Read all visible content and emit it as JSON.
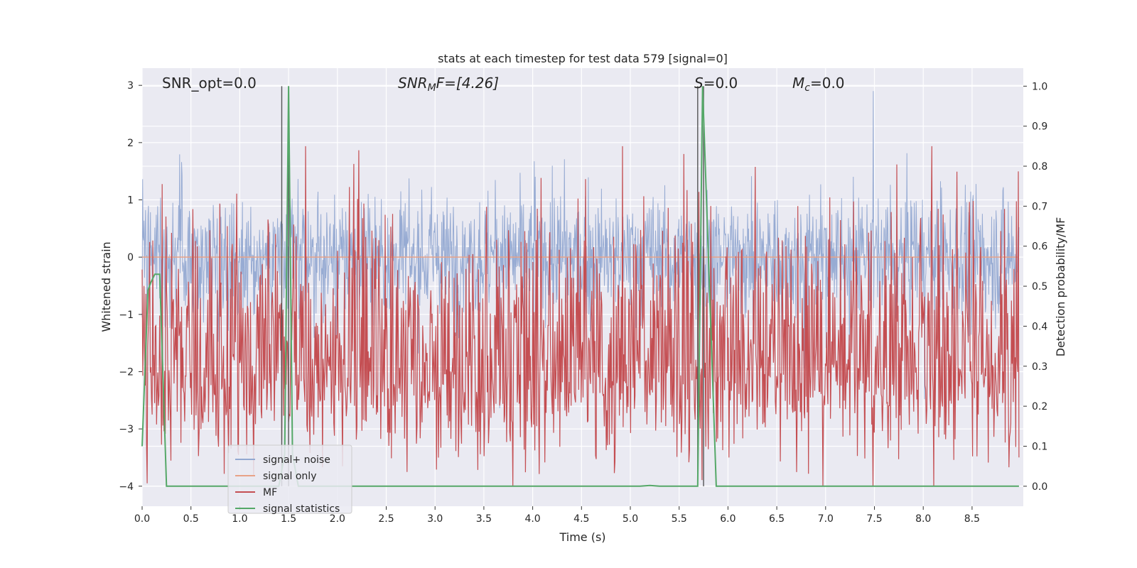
{
  "chart_data": {
    "type": "line",
    "title": "stats at each timestep for test data 579 [signal=0]",
    "xlabel": "Time (s)",
    "ylabel_left": "Whitened strain",
    "ylabel_right": "Detection probability/MF",
    "xlim": [
      0,
      9.0
    ],
    "ylim_left": [
      -4.35,
      3.3
    ],
    "ylim_right": [
      -0.05,
      1.045
    ],
    "x_ticks": [
      "0.0",
      "0.5",
      "1.0",
      "1.5",
      "2.0",
      "2.5",
      "3.0",
      "3.5",
      "4.0",
      "4.5",
      "5.0",
      "5.5",
      "6.0",
      "6.5",
      "7.0",
      "7.5",
      "8.0",
      "8.5"
    ],
    "y_ticks_left": [
      "3",
      "2",
      "1",
      "0",
      "−1",
      "−2",
      "−3",
      "−4"
    ],
    "y_ticks_right": [
      "1.0",
      "0.9",
      "0.8",
      "0.7",
      "0.6",
      "0.5",
      "0.4",
      "0.3",
      "0.2",
      "0.1",
      "0.0"
    ],
    "grid": true,
    "legend_position": "lower-left",
    "annotations": {
      "snr_opt": "SNR_opt=0.0",
      "snr_mf_base": "SNR",
      "snr_mf_sub": "M",
      "snr_mf_rest": "F=[4.26]",
      "s_label": "S",
      "s_value": "=0.0",
      "mc_base": "M",
      "mc_sub": "c",
      "mc_value": "=0.0"
    },
    "series": [
      {
        "name": "signal+ noise",
        "color": "#92a8d1",
        "kind": "noise",
        "min": -3.2,
        "max": 2.9,
        "typical_range": [
          -1.5,
          1.5
        ]
      },
      {
        "name": "signal only",
        "color": "#e8a287",
        "constant": 0.0
      },
      {
        "name": "MF",
        "color": "#c44e52",
        "kind": "noise",
        "typical_range": [
          0.0,
          0.85
        ]
      },
      {
        "name": "signal statistics",
        "color": "#55a868",
        "x": [
          0.0,
          0.06,
          0.09,
          0.13,
          0.18,
          0.25,
          0.3,
          1.4,
          1.46,
          1.5,
          1.54,
          1.6,
          5.1,
          5.2,
          5.3,
          5.69,
          5.74,
          5.88,
          5.95,
          9.0
        ],
        "y": [
          0.1,
          0.49,
          0.51,
          0.53,
          0.53,
          0.0,
          0.0,
          0.0,
          0.08,
          1.0,
          0.08,
          0.0,
          0.0,
          0.002,
          0.0,
          0.0,
          1.0,
          0.0,
          0.0,
          0.0
        ]
      }
    ],
    "vertical_lines_x": [
      1.43,
      1.5,
      5.69,
      5.75
    ],
    "vertical_line_color": "#555555"
  },
  "legend": {
    "items": [
      {
        "label": "signal+ noise",
        "color": "#92a8d1"
      },
      {
        "label": "signal only",
        "color": "#e8a287"
      },
      {
        "label": "MF",
        "color": "#c44e52"
      },
      {
        "label": "signal statistics",
        "color": "#55a868"
      }
    ]
  },
  "colors": {
    "axes_bg": "#eaeaf2",
    "grid": "#ffffff"
  }
}
